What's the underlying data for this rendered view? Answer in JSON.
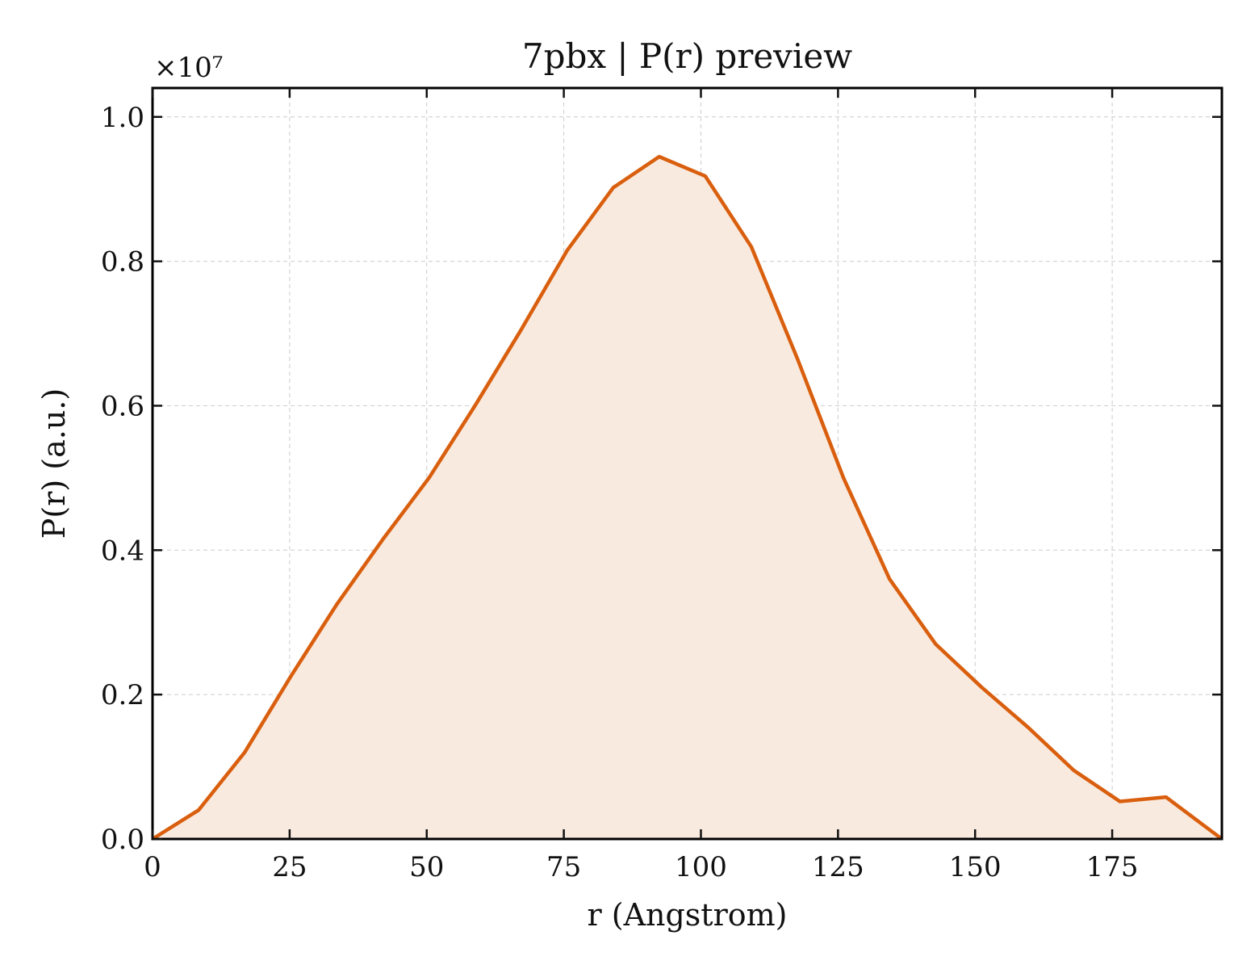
{
  "chart_data": {
    "type": "area",
    "title": "7pbx | P(r) preview",
    "xlabel": "r (Angstrom)",
    "ylabel": "P(r) (a.u.)",
    "y_multiplier": "×10⁷",
    "xlim": [
      0,
      195
    ],
    "ylim": [
      0,
      1.04
    ],
    "x_ticks": [
      0,
      25,
      50,
      75,
      100,
      125,
      150,
      175
    ],
    "x_tick_labels": [
      "0",
      "25",
      "50",
      "75",
      "100",
      "125",
      "150",
      "175"
    ],
    "y_ticks": [
      0,
      0.2,
      0.4,
      0.6,
      0.8,
      1.0
    ],
    "y_tick_labels": [
      "0.0",
      "0.2",
      "0.4",
      "0.6",
      "0.8",
      "1.0"
    ],
    "grid": true,
    "line_color": "#d95f0e",
    "fill_color": "#f9eadf",
    "series": [
      {
        "x": [
          0,
          8.4,
          16.8,
          25.2,
          33.6,
          42.0,
          50.4,
          58.8,
          67.2,
          75.6,
          84.0,
          92.4,
          100.8,
          109.2,
          117.6,
          126.0,
          134.4,
          142.8,
          151.2,
          159.6,
          168.0,
          176.4,
          184.8,
          195
        ],
        "y": [
          0.0,
          0.04,
          0.12,
          0.225,
          0.325,
          0.415,
          0.5,
          0.6,
          0.705,
          0.815,
          0.902,
          0.945,
          0.918,
          0.82,
          0.665,
          0.5,
          0.36,
          0.27,
          0.21,
          0.155,
          0.095,
          0.052,
          0.058,
          0.0
        ]
      }
    ]
  }
}
